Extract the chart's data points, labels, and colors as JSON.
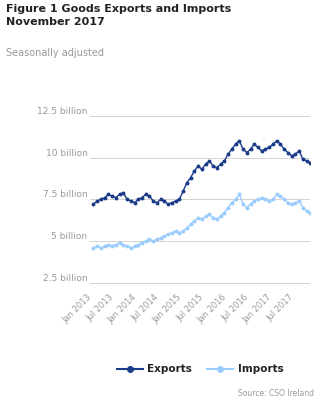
{
  "title": "Figure 1 Goods Exports and Imports\nNovember 2017",
  "subtitle": "Seasonally adjusted",
  "source": "Source: CSO Ireland",
  "exports": [
    7.2,
    7.4,
    7.5,
    7.6,
    7.8,
    7.7,
    7.6,
    7.8,
    7.9,
    7.5,
    7.4,
    7.3,
    7.5,
    7.6,
    7.8,
    7.7,
    7.4,
    7.3,
    7.5,
    7.4,
    7.2,
    7.3,
    7.4,
    7.5,
    8.0,
    8.5,
    8.8,
    9.2,
    9.5,
    9.3,
    9.6,
    9.8,
    9.5,
    9.4,
    9.6,
    9.8,
    10.2,
    10.5,
    10.8,
    11.0,
    10.5,
    10.3,
    10.5,
    10.8,
    10.6,
    10.4,
    10.5,
    10.6,
    10.8,
    11.0,
    10.8,
    10.5,
    10.3,
    10.1,
    10.2,
    10.4,
    9.9,
    9.8,
    9.7
  ],
  "imports": [
    4.6,
    4.7,
    4.6,
    4.7,
    4.8,
    4.7,
    4.8,
    4.9,
    4.8,
    4.7,
    4.6,
    4.7,
    4.8,
    4.9,
    5.0,
    5.1,
    5.0,
    5.1,
    5.2,
    5.3,
    5.4,
    5.5,
    5.6,
    5.5,
    5.6,
    5.8,
    6.0,
    6.2,
    6.4,
    6.3,
    6.5,
    6.6,
    6.4,
    6.3,
    6.5,
    6.7,
    7.0,
    7.3,
    7.5,
    7.8,
    7.2,
    7.0,
    7.2,
    7.4,
    7.5,
    7.6,
    7.5,
    7.4,
    7.5,
    7.8,
    7.7,
    7.5,
    7.3,
    7.2,
    7.3,
    7.4,
    7.0,
    6.8,
    6.7
  ],
  "n_points": 59,
  "exports_color": "#1a3a8a",
  "imports_color": "#99ccff",
  "grid_color": "#cccccc",
  "title_color": "#222222",
  "subtitle_color": "#999999",
  "source_color": "#999999",
  "tick_label_color": "#999999",
  "ytick_labels": [
    "12.5 billion",
    "10 billion",
    "7.5 billion",
    "5 billion",
    "2.5 billion"
  ],
  "ytick_values": [
    12.5,
    10.0,
    7.5,
    5.0,
    2.5
  ],
  "ylim": [
    2.2,
    13.2
  ],
  "background_color": "#ffffff",
  "xtick_labels": [
    "Jan 2013",
    "Jul 2013",
    "Jan 2014",
    "Jul 2014",
    "Jan 2015",
    "Jul 2015",
    "Jan 2016",
    "Jul 2016",
    "Jan 2017",
    "Jul 2017"
  ],
  "xtick_positions": [
    0,
    6,
    12,
    18,
    24,
    30,
    36,
    42,
    48,
    54
  ]
}
